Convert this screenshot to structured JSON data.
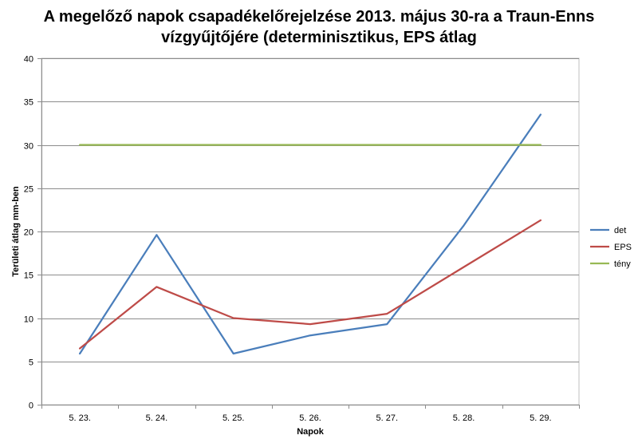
{
  "chart_data": {
    "type": "line",
    "title_line1": "A megelőző napok csapadékelőrejelzése 2013. május 30-ra a Traun-Enns",
    "title_line2": "vízgyűjtőjére (determinisztikus, EPS átlag",
    "xlabel": "Napok",
    "ylabel": "Területi átlag mm-ben",
    "categories": [
      "5. 23.",
      "5. 24.",
      "5. 25.",
      "5. 26.",
      "5. 27.",
      "5. 28.",
      "5. 29."
    ],
    "yticks": [
      "0",
      "5",
      "10",
      "15",
      "20",
      "25",
      "30",
      "35",
      "40"
    ],
    "ylim": [
      0,
      40
    ],
    "grid": "horizontal",
    "legend_position": "right",
    "series": [
      {
        "name": "det",
        "color": "#4a7ebb",
        "values": [
          5.9,
          19.6,
          5.9,
          8.0,
          9.3,
          20.7,
          33.5
        ]
      },
      {
        "name": "EPS",
        "color": "#be4b48",
        "values": [
          6.5,
          13.6,
          10.0,
          9.3,
          10.5,
          15.9,
          21.3
        ]
      },
      {
        "name": "tény",
        "color": "#98b954",
        "values": [
          30,
          30,
          30,
          30,
          30,
          30,
          30
        ]
      }
    ]
  }
}
